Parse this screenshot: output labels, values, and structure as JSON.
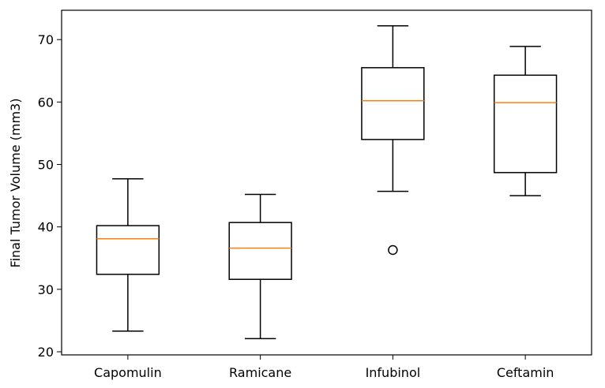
{
  "chart_data": {
    "type": "boxplot",
    "title": "",
    "xlabel": "",
    "ylabel": "Final Tumor Volume (mm3)",
    "ylim": [
      19.5,
      74.7
    ],
    "yticks": [
      20,
      30,
      40,
      50,
      60,
      70
    ],
    "ytick_labels": [
      "20",
      "30",
      "40",
      "50",
      "60",
      "70"
    ],
    "categories": [
      "Capomulin",
      "Ramicane",
      "Infubinol",
      "Ceftamin"
    ],
    "boxes": [
      {
        "name": "Capomulin",
        "whislo": 23.3,
        "q1": 32.4,
        "med": 38.1,
        "q3": 40.2,
        "whishi": 47.7,
        "fliers": []
      },
      {
        "name": "Ramicane",
        "whislo": 22.1,
        "q1": 31.6,
        "med": 36.6,
        "q3": 40.7,
        "whishi": 45.2,
        "fliers": []
      },
      {
        "name": "Infubinol",
        "whislo": 45.7,
        "q1": 54.0,
        "med": 60.2,
        "q3": 65.5,
        "whishi": 72.2,
        "fliers": [
          36.3
        ]
      },
      {
        "name": "Ceftamin",
        "whislo": 45.0,
        "q1": 48.7,
        "med": 59.9,
        "q3": 64.3,
        "whishi": 68.9,
        "fliers": []
      }
    ],
    "colors": {
      "box": "#000000",
      "median": "#ff7f0e",
      "flier": "#000000",
      "frame": "#000000"
    },
    "grid": false,
    "legend": "none"
  }
}
